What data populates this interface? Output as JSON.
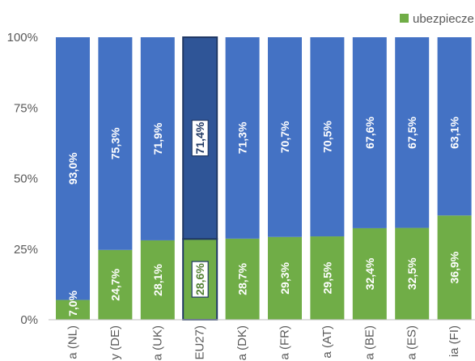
{
  "chart_data": {
    "type": "bar",
    "stacked": true,
    "percent": true,
    "categories": [
      "a (NL)",
      "y (DE)",
      "a (UK)",
      "EU27)",
      "a (DK)",
      "a (FR)",
      "a (AT)",
      "a (BE)",
      "a (ES)",
      "ia (FI)"
    ],
    "highlighted_category": "EU27)",
    "series": [
      {
        "name": "ubezpiecze",
        "color": "#70ad47",
        "values": [
          7.0,
          24.7,
          28.1,
          28.6,
          28.7,
          29.3,
          29.5,
          32.4,
          32.5,
          36.9
        ],
        "labels": [
          "7,0%",
          "24,7%",
          "28,1%",
          "28,6%",
          "28,7%",
          "29,3%",
          "29,5%",
          "32,4%",
          "32,5%",
          "36,9%"
        ]
      },
      {
        "color": "#4472c4",
        "highlight_color": "#2f5597",
        "values": [
          93.0,
          75.3,
          71.9,
          71.4,
          71.3,
          70.7,
          70.5,
          67.6,
          67.5,
          63.1
        ],
        "labels": [
          "93,0%",
          "75,3%",
          "71,9%",
          "71,4%",
          "71,3%",
          "70,7%",
          "70,5%",
          "67,6%",
          "67,5%",
          "63,1%"
        ]
      }
    ],
    "yticks": [
      "0%",
      "25%",
      "50%",
      "75%",
      "100%"
    ],
    "ylim": [
      0,
      100
    ],
    "grid": false,
    "legend_position": "top-right"
  }
}
